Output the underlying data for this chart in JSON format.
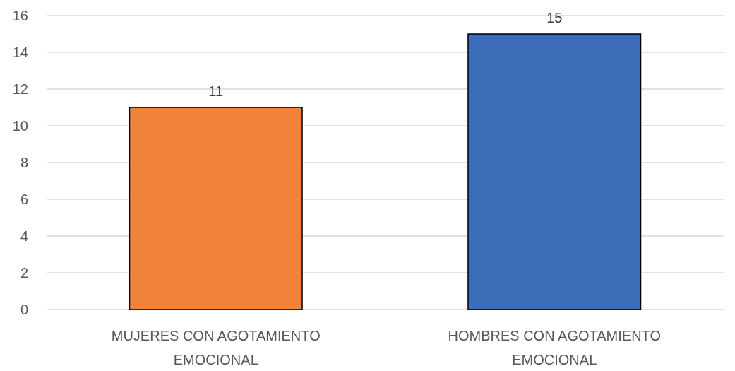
{
  "chart_data": {
    "type": "bar",
    "categories": [
      "MUJERES CON AGOTAMIENTO EMOCIONAL",
      "HOMBRES CON AGOTAMIENTO EMOCIONAL"
    ],
    "values": [
      11,
      15
    ],
    "colors": [
      "#f0823a",
      "#3b6db8"
    ],
    "ylim": [
      0,
      16
    ],
    "yticks": [
      0,
      2,
      4,
      6,
      8,
      10,
      12,
      14,
      16
    ],
    "grid": "y",
    "data_labels": true
  }
}
